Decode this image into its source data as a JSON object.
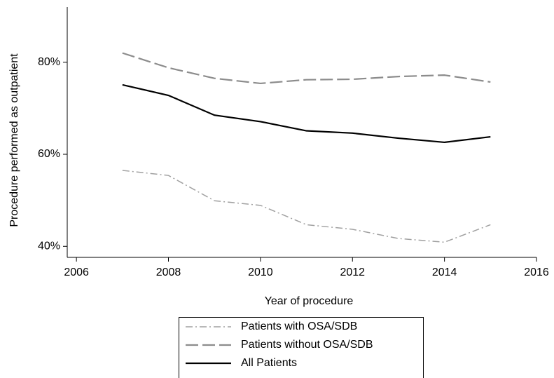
{
  "chart_data": {
    "type": "line",
    "x_label": "Year of procedure",
    "y_label": "Procedure performed as outpatient",
    "x": [
      2007,
      2008,
      2009,
      2010,
      2011,
      2012,
      2013,
      2014,
      2015
    ],
    "series": [
      {
        "name": "Patients with OSA/SDB",
        "color": "#a0a0a0",
        "values": [
          56.5,
          55.4,
          49.9,
          48.9,
          44.7,
          43.7,
          41.7,
          40.9,
          44.7
        ]
      },
      {
        "name": "Patients without OSA/SDB",
        "color": "#8c8c8c",
        "values": [
          82.0,
          78.8,
          76.5,
          75.4,
          76.2,
          76.3,
          76.9,
          77.2,
          75.7
        ]
      },
      {
        "name": "All Patients",
        "color": "#000000",
        "values": [
          75.1,
          72.8,
          68.5,
          67.1,
          65.1,
          64.6,
          63.5,
          62.6,
          63.8
        ]
      }
    ],
    "xlim": [
      2005.8,
      2016
    ],
    "xticks": [
      2006,
      2008,
      2010,
      2012,
      2014,
      2016
    ],
    "ylim": [
      37.6,
      92
    ],
    "yticks": [
      {
        "value": 40,
        "label": "40%"
      },
      {
        "value": 60,
        "label": "60%"
      },
      {
        "value": 80,
        "label": "80%"
      }
    ],
    "grid": false,
    "legend": "bottom"
  }
}
